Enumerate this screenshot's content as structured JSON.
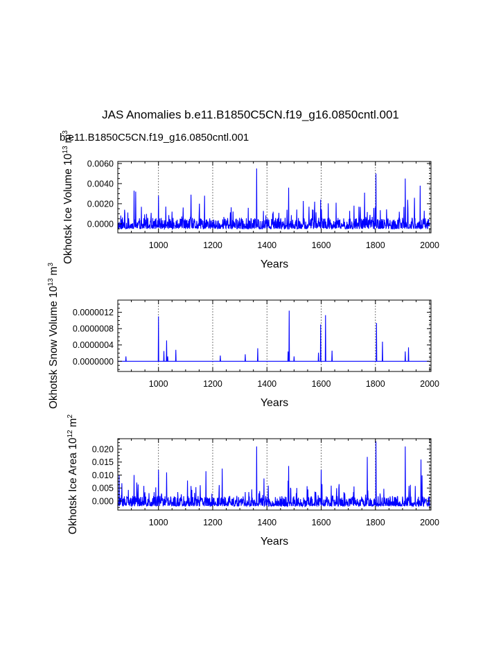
{
  "title": "JAS Anomalies b.e11.B1850C5CN.f19_g16.0850cntl.001",
  "case_label": "b.e11.B1850C5CN.f19_g16.0850cntl.001",
  "colors": {
    "series": "#0000ff",
    "axis": "#000000",
    "grid": "#555555"
  },
  "chart_data": [
    {
      "type": "line",
      "title": "",
      "xlabel": "Years",
      "ylabel": "Okhotsk Ice Volume 10",
      "ylabel_units": [
        "13",
        "m",
        "3"
      ],
      "xlim": [
        850,
        2005
      ],
      "ylim": [
        -0.0009,
        0.0062
      ],
      "xticks": [
        1000,
        1200,
        1400,
        1600,
        1800,
        2000
      ],
      "yticks": [
        0.0,
        0.002,
        0.004,
        0.006
      ],
      "ytick_labels": [
        "0.0000",
        "0.0020",
        "0.0040",
        "0.0060"
      ],
      "vlines": [
        1000,
        1200,
        1400,
        1600,
        1800,
        2000
      ],
      "series": [
        {
          "name": "Okhotsk Ice Volume",
          "seed": 11,
          "base": -0.0005,
          "noise": 0.0011,
          "spike_prob": 0.07,
          "spike_max": 0.0022,
          "peaks": [
            [
              910,
              0.0033
            ],
            [
              916,
              0.0032
            ],
            [
              1000,
              0.0028
            ],
            [
              1120,
              0.0029
            ],
            [
              1170,
              0.0028
            ],
            [
              1362,
              0.0055
            ],
            [
              1480,
              0.0036
            ],
            [
              1598,
              0.0024
            ],
            [
              1760,
              0.0031
            ],
            [
              1802,
              0.005
            ],
            [
              1910,
              0.0045
            ],
            [
              1965,
              0.0038
            ]
          ]
        }
      ]
    },
    {
      "type": "line",
      "title": "",
      "xlabel": "Years",
      "ylabel": "Okhotsk Snow Volume 10",
      "ylabel_units": [
        "13",
        "m",
        "3"
      ],
      "xlim": [
        850,
        2005
      ],
      "ylim": [
        -2.5e-07,
        1.5e-06
      ],
      "xticks": [
        1000,
        1200,
        1400,
        1600,
        1800,
        2000
      ],
      "yticks": [
        0.0,
        4e-07,
        8e-07,
        1.2e-06
      ],
      "ytick_labels": [
        "0.0000000",
        "0.0000004",
        "0.0000008",
        "0.0000012"
      ],
      "vlines": [
        1000,
        1200,
        1400,
        1600,
        1800,
        2000
      ],
      "series": [
        {
          "name": "Okhotsk Snow Volume",
          "seed": 23,
          "base": 0.0,
          "noise": 0.0,
          "spike_prob": 0.0,
          "spike_max": 0.0,
          "peaks": [
            [
              880,
              1.2e-07
            ],
            [
              1000,
              1.1e-06
            ],
            [
              1020,
              2.5e-07
            ],
            [
              1030,
              5.1e-07
            ],
            [
              1034,
              1.2e-07
            ],
            [
              1064,
              2.8e-07
            ],
            [
              1228,
              1.4e-07
            ],
            [
              1320,
              1.7e-07
            ],
            [
              1366,
              3.2e-07
            ],
            [
              1478,
              2.4e-07
            ],
            [
              1482,
              1.24e-06
            ],
            [
              1500,
              1.2e-07
            ],
            [
              1590,
              2.1e-07
            ],
            [
              1598,
              9e-07
            ],
            [
              1616,
              1.13e-06
            ],
            [
              1640,
              2.6e-07
            ],
            [
              1804,
              9.4e-07
            ],
            [
              1826,
              4.8e-07
            ],
            [
              1910,
              2.4e-07
            ],
            [
              1922,
              3.4e-07
            ]
          ]
        }
      ]
    },
    {
      "type": "line",
      "title": "",
      "xlabel": "Years",
      "ylabel": "Okhotsk Ice Area 10",
      "ylabel_units": [
        "12",
        "m",
        "2"
      ],
      "xlim": [
        850,
        2005
      ],
      "ylim": [
        -0.0035,
        0.024
      ],
      "xticks": [
        1000,
        1200,
        1400,
        1600,
        1800,
        2000
      ],
      "yticks": [
        0.0,
        0.005,
        0.01,
        0.015,
        0.02
      ],
      "ytick_labels": [
        "0.000",
        "0.005",
        "0.010",
        "0.015",
        "0.020"
      ],
      "vlines": [
        1000,
        1200,
        1400,
        1600,
        1800,
        2000
      ],
      "series": [
        {
          "name": "Okhotsk Ice Area",
          "seed": 37,
          "base": -0.002,
          "noise": 0.004,
          "spike_prob": 0.07,
          "spike_max": 0.008,
          "peaks": [
            [
              855,
              0.01
            ],
            [
              910,
              0.01
            ],
            [
              1000,
              0.012
            ],
            [
              1030,
              0.011
            ],
            [
              1175,
              0.0115
            ],
            [
              1235,
              0.0125
            ],
            [
              1362,
              0.021
            ],
            [
              1480,
              0.0135
            ],
            [
              1600,
              0.012
            ],
            [
              1770,
              0.017
            ],
            [
              1802,
              0.023
            ],
            [
              1910,
              0.021
            ],
            [
              1968,
              0.016
            ]
          ]
        }
      ]
    }
  ]
}
